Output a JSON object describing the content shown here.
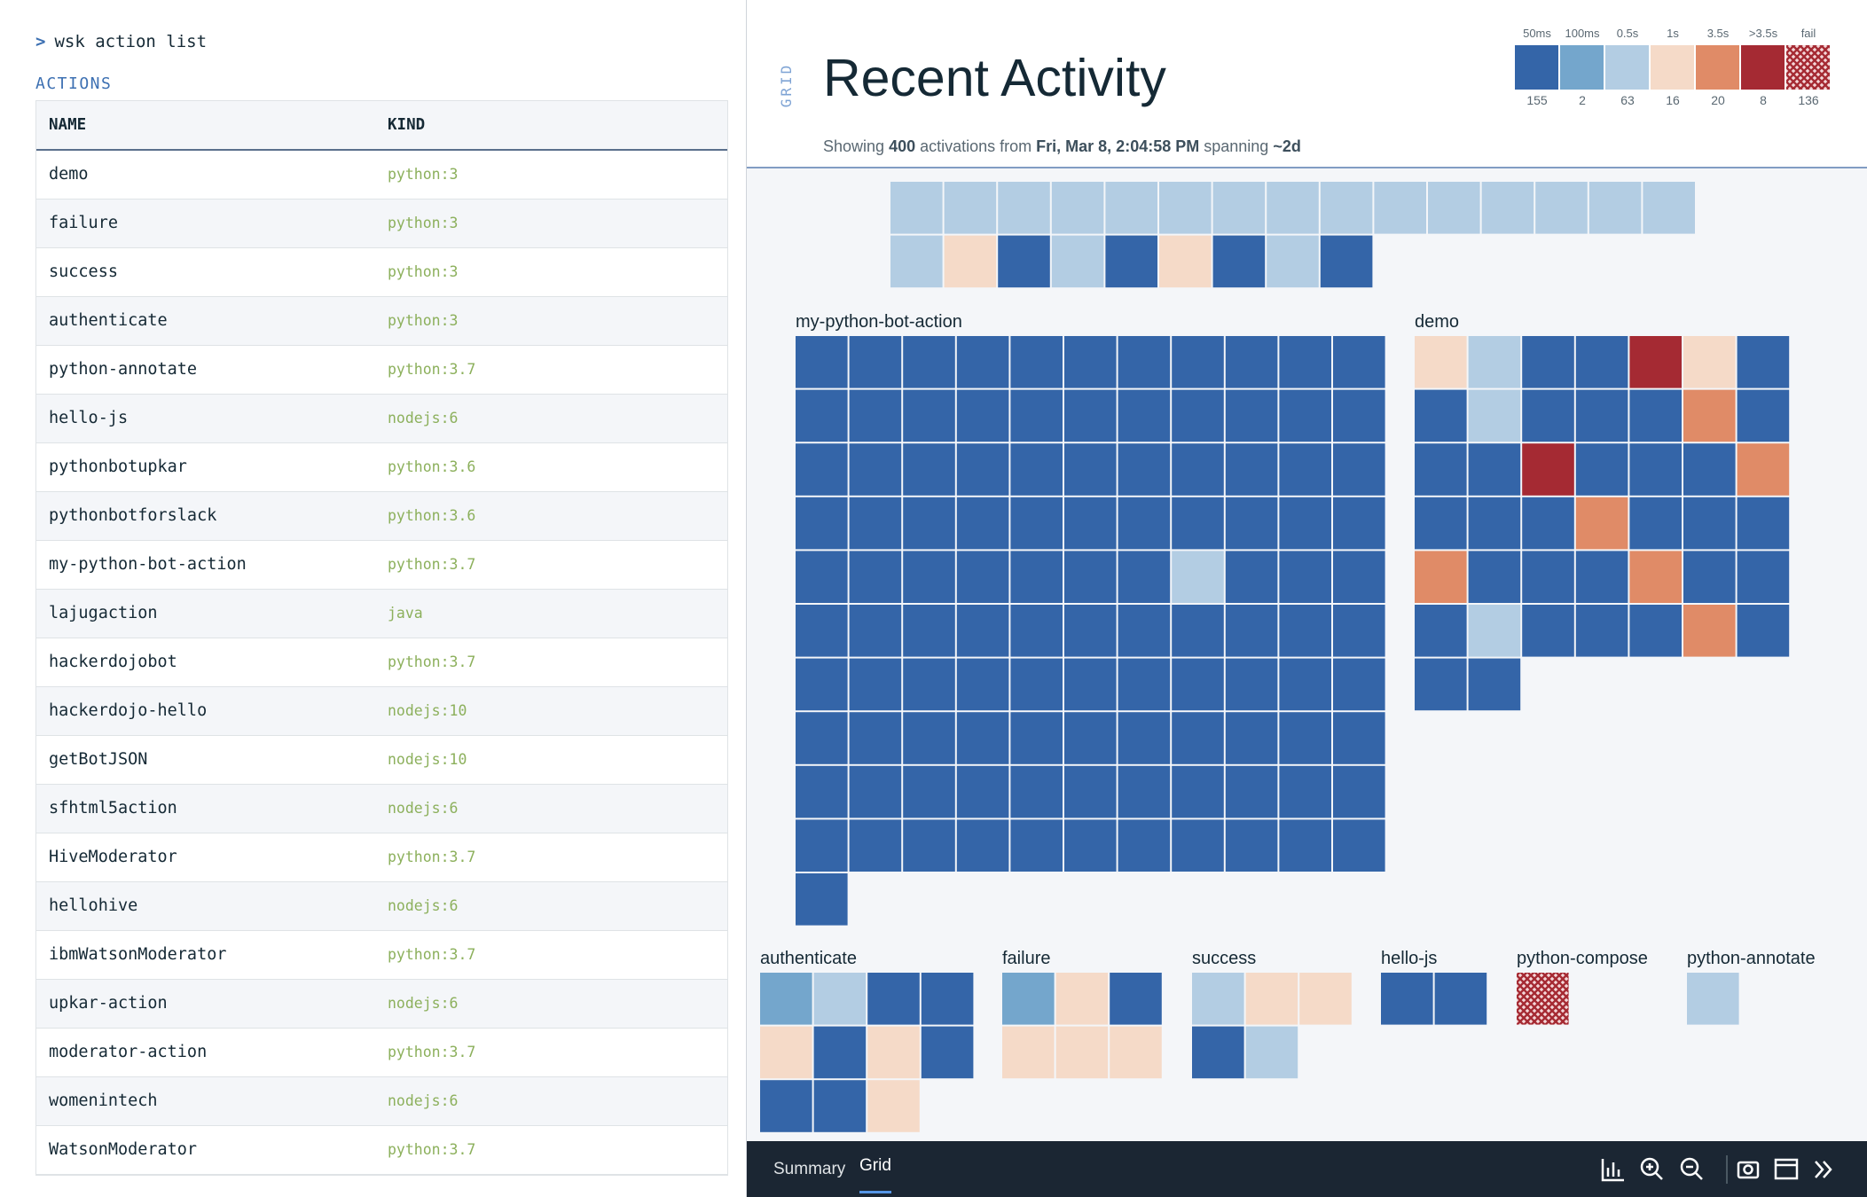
{
  "command": "wsk action list",
  "actions": {
    "heading": "ACTIONS",
    "columns": [
      "NAME",
      "KIND"
    ],
    "rows": [
      [
        "demo",
        "python:3"
      ],
      [
        "failure",
        "python:3"
      ],
      [
        "success",
        "python:3"
      ],
      [
        "authenticate",
        "python:3"
      ],
      [
        "python-annotate",
        "python:3.7"
      ],
      [
        "hello-js",
        "nodejs:6"
      ],
      [
        "pythonbotupkar",
        "python:3.6"
      ],
      [
        "pythonbotforslack",
        "python:3.6"
      ],
      [
        "my-python-bot-action",
        "python:3.7"
      ],
      [
        "lajugaction",
        "java"
      ],
      [
        "hackerdojobot",
        "python:3.7"
      ],
      [
        "hackerdojo-hello",
        "nodejs:10"
      ],
      [
        "getBotJSON",
        "nodejs:10"
      ],
      [
        "sfhtml5action",
        "nodejs:6"
      ],
      [
        "HiveModerator",
        "python:3.7"
      ],
      [
        "hellohive",
        "nodejs:6"
      ],
      [
        "ibmWatsonModerator",
        "python:3.7"
      ],
      [
        "upkar-action",
        "nodejs:6"
      ],
      [
        "moderator-action",
        "python:3.7"
      ],
      [
        "womenintech",
        "nodejs:6"
      ],
      [
        "WatsonModerator",
        "python:3.7"
      ]
    ]
  },
  "activity": {
    "side_label": "GRID",
    "title": "Recent Activity",
    "subtitle": [
      {
        "text": "Showing "
      },
      {
        "text": "400",
        "bold": true
      },
      {
        "text": " activations from "
      },
      {
        "text": "Fri, Mar 8, 2:04:58 PM",
        "bold": true
      },
      {
        "text": " spanning "
      },
      {
        "text": "~2d",
        "bold": true
      }
    ],
    "legend": [
      {
        "label": "50ms",
        "color": "#3465a8",
        "count": 155
      },
      {
        "label": "100ms",
        "color": "#74a6cc",
        "count": 2
      },
      {
        "label": "0.5s",
        "color": "#b3cde3",
        "count": 63
      },
      {
        "label": "1s",
        "color": "#f5dac8",
        "count": 16
      },
      {
        "label": "3.5s",
        "color": "#e08b67",
        "count": 20
      },
      {
        "label": ">3.5s",
        "color": "#a52a33",
        "count": 8
      },
      {
        "label": "fail",
        "color": "#a52a33",
        "pattern": "crosshatch",
        "count": 136
      }
    ],
    "grids": [
      {
        "cells": [
          "0.5s",
          "0.5s",
          "0.5s",
          "0.5s",
          "0.5s",
          "0.5s",
          "0.5s",
          "0.5s",
          "0.5s",
          "0.5s",
          "0.5s",
          "0.5s",
          "0.5s",
          "0.5s",
          "0.5s",
          "0.5s",
          "1s",
          "50ms",
          "0.5s",
          "50ms",
          "1s",
          "50ms",
          "0.5s",
          "50ms"
        ]
      },
      {
        "name": "my-python-bot-action",
        "cells": [
          "50ms",
          "50ms",
          "50ms",
          "50ms",
          "50ms",
          "50ms",
          "50ms",
          "50ms",
          "50ms",
          "50ms",
          "50ms",
          "50ms",
          "50ms",
          "50ms",
          "50ms",
          "50ms",
          "50ms",
          "50ms",
          "50ms",
          "50ms",
          "50ms",
          "50ms",
          "50ms",
          "50ms",
          "50ms",
          "50ms",
          "50ms",
          "50ms",
          "50ms",
          "50ms",
          "50ms",
          "50ms",
          "50ms",
          "50ms",
          "50ms",
          "50ms",
          "50ms",
          "50ms",
          "50ms",
          "50ms",
          "50ms",
          "50ms",
          "50ms",
          "50ms",
          "50ms",
          "50ms",
          "50ms",
          "50ms",
          "50ms",
          "50ms",
          "50ms",
          "0.5s",
          "50ms",
          "50ms",
          "50ms",
          "50ms",
          "50ms",
          "50ms",
          "50ms",
          "50ms",
          "50ms",
          "50ms",
          "50ms",
          "50ms",
          "50ms",
          "50ms",
          "50ms",
          "50ms",
          "50ms",
          "50ms",
          "50ms",
          "50ms",
          "50ms",
          "50ms",
          "50ms",
          "50ms",
          "50ms",
          "50ms",
          "50ms",
          "50ms",
          "50ms",
          "50ms",
          "50ms",
          "50ms",
          "50ms",
          "50ms",
          "50ms",
          "50ms",
          "50ms",
          "50ms",
          "50ms",
          "50ms",
          "50ms",
          "50ms",
          "50ms",
          "50ms",
          "50ms",
          "50ms",
          "50ms",
          "50ms",
          "50ms",
          "50ms",
          "50ms",
          "50ms",
          "50ms",
          "50ms",
          "50ms",
          "50ms",
          "50ms",
          "50ms",
          "50ms"
        ]
      },
      {
        "name": "demo",
        "cells": [
          "1s",
          "0.5s",
          "50ms",
          "50ms",
          ">3.5s",
          "1s",
          "50ms",
          "50ms",
          "0.5s",
          "50ms",
          "50ms",
          "50ms",
          "3.5s",
          "50ms",
          "50ms",
          "50ms",
          ">3.5s",
          "50ms",
          "50ms",
          "50ms",
          "3.5s",
          "50ms",
          "50ms",
          "50ms",
          "3.5s",
          "50ms",
          "50ms",
          "50ms",
          "3.5s",
          "50ms",
          "50ms",
          "50ms",
          "3.5s",
          "50ms",
          "50ms",
          "50ms",
          "0.5s",
          "50ms",
          "50ms",
          "50ms",
          "3.5s",
          "50ms",
          "50ms",
          "50ms"
        ]
      },
      {
        "name": "authenticate",
        "cells": [
          "100ms",
          "0.5s",
          "50ms",
          "50ms",
          "1s",
          "50ms",
          "1s",
          "50ms",
          "50ms",
          "50ms",
          "1s"
        ]
      },
      {
        "name": "failure",
        "cells": [
          "100ms",
          "1s",
          "50ms",
          "1s",
          "1s",
          "1s"
        ]
      },
      {
        "name": "success",
        "cells": [
          "0.5s",
          "1s",
          "1s",
          "50ms",
          "0.5s"
        ]
      },
      {
        "name": "hello-js",
        "cells": [
          "50ms",
          "50ms"
        ]
      },
      {
        "name": "python-compose",
        "cells": [
          "fail"
        ]
      },
      {
        "name": "python-annotate",
        "cells": [
          "0.5s"
        ]
      }
    ]
  },
  "tabs": [
    "Summary",
    "Grid"
  ],
  "active_tab": "Grid"
}
